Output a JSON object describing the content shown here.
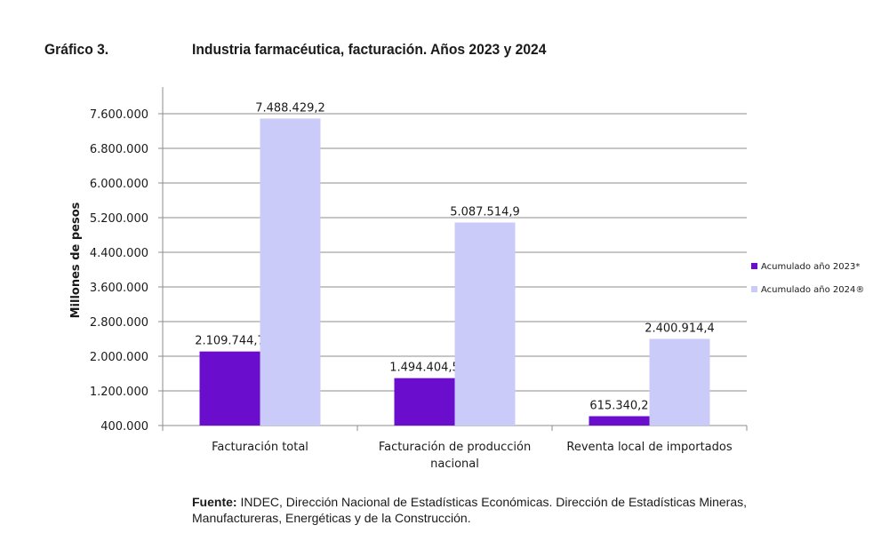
{
  "figure": {
    "label": "Gráfico 3.",
    "title": "Industria farmacéutica, facturación. Años 2023 y 2024"
  },
  "source": {
    "prefix": "Fuente:",
    "text": " INDEC, Dirección Nacional de Estadísticas Económicas. Dirección de Estadísticas Mineras, Manufactureras, Energéticas y de la Construcción."
  },
  "colors": {
    "series_2023": "#6A0DCC",
    "series_2024": "#CBCBFA",
    "grid": "#8c8c8c",
    "axis": "#8c8c8c"
  },
  "chart_data": {
    "type": "bar",
    "title": "",
    "xlabel": "",
    "ylabel": "Millones de pesos",
    "ylim": [
      400000,
      7600000
    ],
    "yticks": [
      400000,
      1200000,
      2000000,
      2800000,
      3600000,
      4400000,
      5200000,
      6000000,
      6800000,
      7600000
    ],
    "ytick_labels": [
      "400.000",
      "1.200.000",
      "2.000.000",
      "2.800.000",
      "3.600.000",
      "4.400.000",
      "5.200.000",
      "6.000.000",
      "6.800.000",
      "7.600.000"
    ],
    "grid": true,
    "legend_position": "right",
    "categories": [
      [
        "Facturación total"
      ],
      [
        "Facturación de producción",
        "nacional"
      ],
      [
        "Reventa local de importados"
      ]
    ],
    "series": [
      {
        "name": "Acumulado año 2023*",
        "values": [
          2109744.7,
          1494404.5,
          615340.2
        ],
        "labels": [
          "2.109.744,7",
          "1.494.404,5",
          "615.340,2"
        ]
      },
      {
        "name": "Acumulado año 2024®",
        "values": [
          7488429.2,
          5087514.9,
          2400914.4
        ],
        "labels": [
          "7.488.429,2",
          "5.087.514,9",
          "2.400.914,4"
        ]
      }
    ]
  }
}
